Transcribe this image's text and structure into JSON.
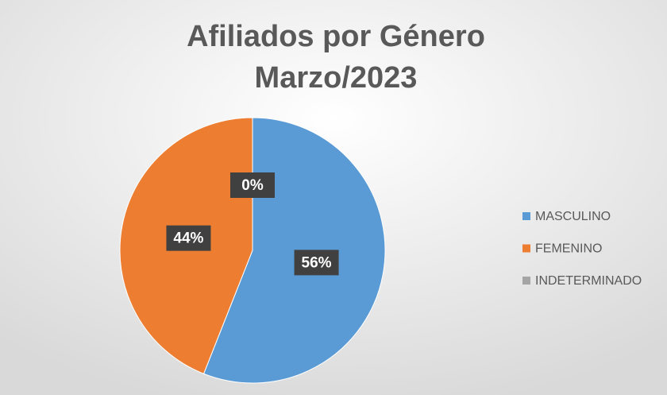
{
  "chart_data": {
    "type": "pie",
    "title": [
      "Afiliados por Género",
      "Marzo/2023"
    ],
    "categories": [
      "MASCULINO",
      "FEMENINO",
      "INDETERMINADO"
    ],
    "values": [
      56,
      44,
      0
    ],
    "value_labels": [
      "56%",
      "44%",
      "0%"
    ],
    "colors": [
      "#5b9bd5",
      "#ed7d31",
      "#a5a5a5"
    ],
    "legend": "right"
  }
}
